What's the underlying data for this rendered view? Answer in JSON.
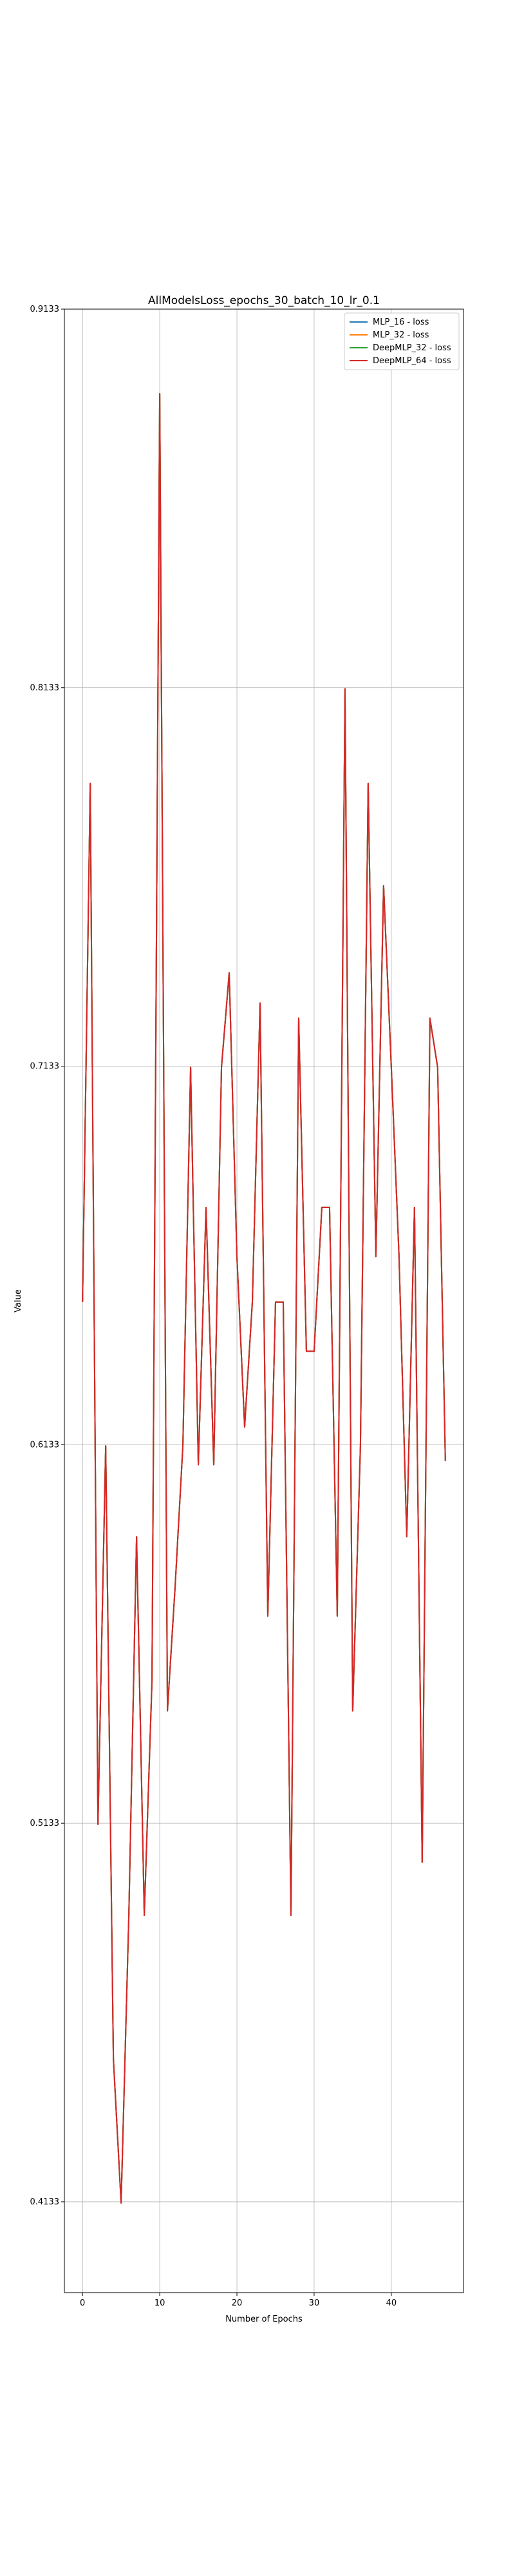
{
  "chart_data": {
    "type": "line",
    "title": "AllModelsLoss_epochs_30_batch_10_lr_0.1",
    "xlabel": "Number of Epochs",
    "ylabel": "Value",
    "xlim": [
      -2.35,
      49.35
    ],
    "ylim": [
      0.3893,
      0.9133
    ],
    "xticks": [
      0,
      10,
      20,
      30,
      40
    ],
    "yticks": [
      0.4133,
      0.5133,
      0.6133,
      0.7133,
      0.8133,
      0.9133
    ],
    "grid": true,
    "legend_position": "top-right",
    "x": [
      0,
      1,
      2,
      3,
      4,
      5,
      6,
      7,
      8,
      9,
      10,
      11,
      12,
      13,
      14,
      15,
      16,
      17,
      18,
      19,
      20,
      21,
      22,
      23,
      24,
      25,
      26,
      27,
      28,
      29,
      30,
      31,
      32,
      33,
      34,
      35,
      36,
      37,
      38,
      39,
      40,
      41,
      42,
      43,
      44,
      45,
      46,
      47
    ],
    "series": [
      {
        "name": "MLP_16 - loss",
        "color": "#1f77b4",
        "values": [
          0.651,
          0.788,
          0.513,
          0.613,
          0.451,
          0.413,
          0.489,
          0.589,
          0.489,
          0.551,
          0.891,
          0.543,
          0.576,
          0.613,
          0.713,
          0.608,
          0.676,
          0.608,
          0.713,
          0.738,
          0.663,
          0.618,
          0.651,
          0.73,
          0.568,
          0.651,
          0.651,
          0.489,
          0.726,
          0.638,
          0.638,
          0.676,
          0.676,
          0.568,
          0.813,
          0.543,
          0.613,
          0.788,
          0.663,
          0.761,
          0.713,
          0.663,
          0.589,
          0.676,
          0.503,
          0.726,
          0.713,
          0.609
        ]
      },
      {
        "name": "MLP_32 - loss",
        "color": "#ff7f0e",
        "values": [
          0.651,
          0.788,
          0.513,
          0.613,
          0.451,
          0.413,
          0.489,
          0.589,
          0.489,
          0.551,
          0.891,
          0.543,
          0.576,
          0.613,
          0.713,
          0.608,
          0.676,
          0.608,
          0.713,
          0.738,
          0.663,
          0.618,
          0.651,
          0.73,
          0.568,
          0.651,
          0.651,
          0.489,
          0.726,
          0.638,
          0.638,
          0.676,
          0.676,
          0.568,
          0.813,
          0.543,
          0.613,
          0.788,
          0.663,
          0.761,
          0.713,
          0.663,
          0.589,
          0.676,
          0.503,
          0.726,
          0.713,
          0.609
        ]
      },
      {
        "name": "DeepMLP_32 - loss",
        "color": "#2ca02c",
        "values": [
          0.651,
          0.788,
          0.513,
          0.613,
          0.451,
          0.413,
          0.489,
          0.589,
          0.489,
          0.551,
          0.891,
          0.543,
          0.576,
          0.613,
          0.713,
          0.608,
          0.676,
          0.608,
          0.713,
          0.738,
          0.663,
          0.618,
          0.651,
          0.73,
          0.568,
          0.651,
          0.651,
          0.489,
          0.726,
          0.638,
          0.638,
          0.676,
          0.676,
          0.568,
          0.813,
          0.543,
          0.613,
          0.788,
          0.663,
          0.761,
          0.713,
          0.663,
          0.589,
          0.676,
          0.503,
          0.726,
          0.713,
          0.609
        ]
      },
      {
        "name": "DeepMLP_64 - loss",
        "color": "#d62728",
        "values": [
          0.651,
          0.788,
          0.513,
          0.613,
          0.451,
          0.413,
          0.489,
          0.589,
          0.489,
          0.551,
          0.891,
          0.543,
          0.576,
          0.613,
          0.713,
          0.608,
          0.676,
          0.608,
          0.713,
          0.738,
          0.663,
          0.618,
          0.651,
          0.73,
          0.568,
          0.651,
          0.651,
          0.489,
          0.726,
          0.638,
          0.638,
          0.676,
          0.676,
          0.568,
          0.813,
          0.543,
          0.613,
          0.788,
          0.663,
          0.761,
          0.713,
          0.663,
          0.589,
          0.676,
          0.503,
          0.726,
          0.713,
          0.609
        ]
      }
    ]
  }
}
